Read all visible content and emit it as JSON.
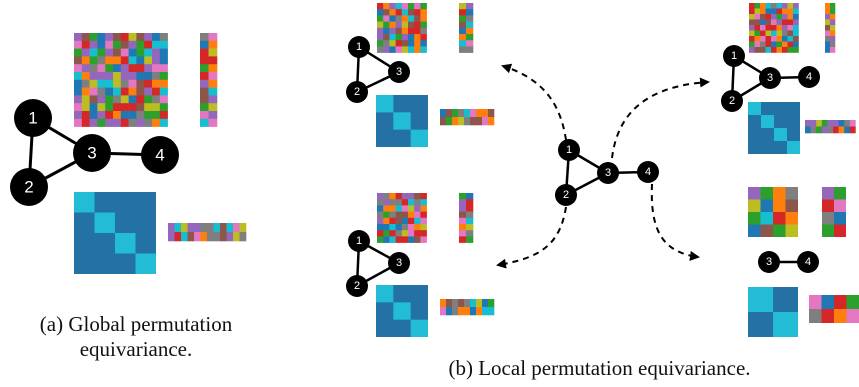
{
  "captions": {
    "global": "(a) Global permutation equivariance.",
    "global_line1": "(a) Global permutation",
    "global_line2": "equivariance.",
    "local": "(b) Local permutation equivariance."
  },
  "node_labels": {
    "n1": "1",
    "n2": "2",
    "n3": "3",
    "n4": "4"
  },
  "colors": {
    "node_fill": "#000000",
    "edge": "#000000",
    "adjacency_dark": "#2471a3",
    "adjacency_light": "#22bcd4",
    "cell_palette": [
      "#d62728",
      "#2ca02c",
      "#1f77b4",
      "#ff7f0e",
      "#9467bd",
      "#8c564b",
      "#e377c2",
      "#7f7f7f",
      "#bcbd22",
      "#17becf"
    ],
    "pair_block_palette": [
      "#9467bd",
      "#2ca02c",
      "#ff7f0e",
      "#7f7f7f",
      "#bcbd22",
      "#1f77b4",
      "#8c564b",
      "#17becf",
      "#d62728",
      "#e377c2"
    ]
  },
  "panels": [
    "global",
    "local-top-left",
    "local-top-right",
    "local-bottom-left",
    "local-bottom-right"
  ]
}
